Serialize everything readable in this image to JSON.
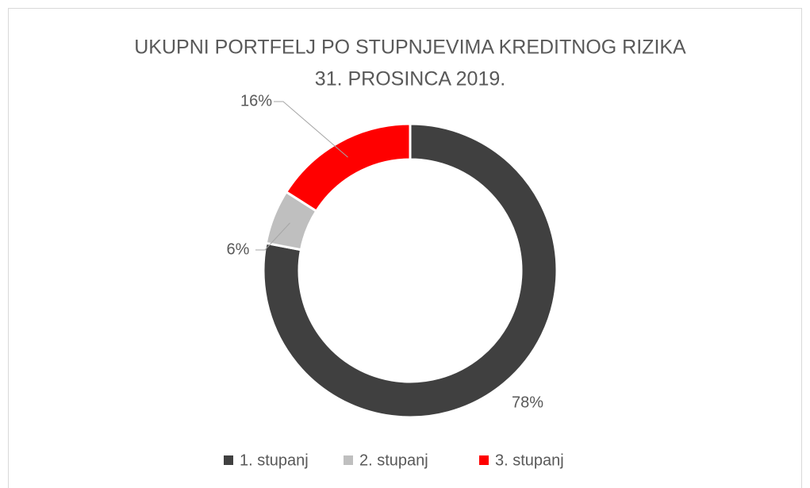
{
  "chart_data": {
    "type": "donut",
    "title": [
      "UKUPNI PORTFELJ PO STUPNJEVIMA KREDITNOG RIZIKA",
      "31. PROSINCA 2019."
    ],
    "categories": [
      "1. stupanj",
      "2. stupanj",
      "3. stupanj"
    ],
    "values": [
      78,
      6,
      16
    ],
    "value_labels": [
      "78%",
      "6%",
      "16%"
    ],
    "colors": [
      "#404040",
      "#bfbfbf",
      "#ff0000"
    ],
    "legend": "bottom"
  }
}
